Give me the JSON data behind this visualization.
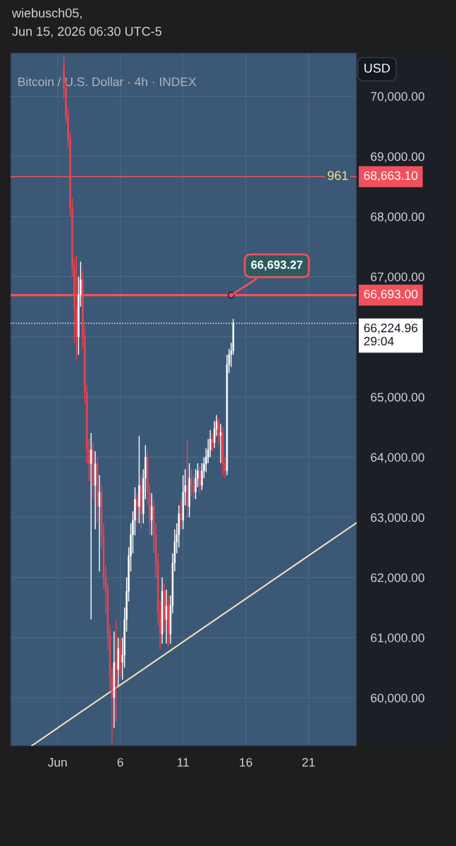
{
  "chart_data": {
    "type": "candlestick",
    "title": "Bitcoin / U.S. Dollar · 4h · INDEX",
    "ylabel": "USD",
    "annotations": [
      "wiebusch05,",
      "Jun 15, 2026 06:30 UTC-5",
      {
        "text": "961",
        "x": "2026-06-23T08:00",
        "y": 68663.1
      },
      {
        "text": "66,693.27",
        "x": "2026-06-14T20:00",
        "y": 66693.27
      }
    ],
    "x": [
      "2026-06-01T12:00",
      "2026-06-01T16:00",
      "2026-06-01T20:00",
      "2026-06-02T00:00",
      "2026-06-02T04:00",
      "2026-06-02T08:00",
      "2026-06-02T12:00",
      "2026-06-02T16:00",
      "2026-06-02T20:00",
      "2026-06-03T00:00",
      "2026-06-03T04:00",
      "2026-06-03T08:00",
      "2026-06-03T12:00",
      "2026-06-03T16:00",
      "2026-06-03T20:00",
      "2026-06-04T00:00",
      "2026-06-04T04:00",
      "2026-06-04T08:00",
      "2026-06-04T12:00",
      "2026-06-04T16:00",
      "2026-06-04T20:00",
      "2026-06-05T00:00",
      "2026-06-05T04:00",
      "2026-06-05T08:00",
      "2026-06-05T12:00",
      "2026-06-05T16:00",
      "2026-06-05T20:00",
      "2026-06-06T00:00",
      "2026-06-06T04:00",
      "2026-06-06T08:00",
      "2026-06-06T12:00",
      "2026-06-06T16:00",
      "2026-06-06T20:00",
      "2026-06-07T00:00",
      "2026-06-07T04:00",
      "2026-06-07T08:00",
      "2026-06-07T12:00",
      "2026-06-07T16:00",
      "2026-06-07T20:00",
      "2026-06-08T00:00",
      "2026-06-08T04:00",
      "2026-06-08T08:00",
      "2026-06-08T12:00",
      "2026-06-08T16:00",
      "2026-06-08T20:00",
      "2026-06-09T00:00",
      "2026-06-09T04:00",
      "2026-06-09T08:00",
      "2026-06-09T12:00",
      "2026-06-09T16:00",
      "2026-06-09T20:00",
      "2026-06-10T00:00",
      "2026-06-10T04:00",
      "2026-06-10T08:00",
      "2026-06-10T12:00",
      "2026-06-10T16:00",
      "2026-06-10T20:00",
      "2026-06-11T00:00",
      "2026-06-11T04:00",
      "2026-06-11T08:00",
      "2026-06-11T12:00",
      "2026-06-11T16:00",
      "2026-06-11T20:00",
      "2026-06-12T00:00",
      "2026-06-12T04:00",
      "2026-06-12T08:00",
      "2026-06-12T12:00",
      "2026-06-12T16:00",
      "2026-06-12T20:00",
      "2026-06-13T00:00",
      "2026-06-13T04:00",
      "2026-06-13T08:00",
      "2026-06-13T12:00",
      "2026-06-13T16:00",
      "2026-06-13T20:00",
      "2026-06-14T00:00",
      "2026-06-14T04:00",
      "2026-06-14T08:00",
      "2026-06-14T12:00",
      "2026-06-14T16:00",
      "2026-06-14T20:00",
      "2026-06-15T00:00"
    ],
    "ohlc": [
      [
        70500,
        70650,
        69950,
        70130
      ],
      [
        70130,
        70250,
        69550,
        69660
      ],
      [
        69660,
        69800,
        69150,
        69300
      ],
      [
        69300,
        69400,
        68000,
        68130
      ],
      [
        68130,
        68300,
        67000,
        67180
      ],
      [
        67180,
        67300,
        65900,
        66480
      ],
      [
        66480,
        67350,
        65600,
        66000
      ],
      [
        66000,
        67000,
        65700,
        66700
      ],
      [
        66700,
        67250,
        66500,
        66950
      ],
      [
        66950,
        67100,
        65800,
        66000
      ],
      [
        66000,
        66200,
        64900,
        65070
      ],
      [
        65070,
        65200,
        63900,
        64120
      ],
      [
        64120,
        64300,
        63600,
        63890
      ],
      [
        63890,
        64400,
        61300,
        64120
      ],
      [
        64120,
        64250,
        63300,
        63530
      ],
      [
        63530,
        64100,
        62800,
        63890
      ],
      [
        63890,
        64000,
        62900,
        63180
      ],
      [
        63180,
        63700,
        62100,
        63420
      ],
      [
        63420,
        63550,
        62500,
        62710
      ],
      [
        62710,
        62900,
        61800,
        62000
      ],
      [
        62000,
        62200,
        61400,
        61770
      ],
      [
        61770,
        61900,
        60800,
        61060
      ],
      [
        61060,
        61200,
        60100,
        60350
      ],
      [
        60350,
        60500,
        59250,
        60000
      ],
      [
        60000,
        61100,
        59500,
        60590
      ],
      [
        60590,
        61300,
        59600,
        60470
      ],
      [
        60470,
        61000,
        60200,
        60820
      ],
      [
        60820,
        61000,
        60350,
        60590
      ],
      [
        60590,
        61000,
        60300,
        60710
      ],
      [
        60710,
        61500,
        60500,
        61300
      ],
      [
        61300,
        62000,
        61100,
        61770
      ],
      [
        61770,
        62500,
        61600,
        62360
      ],
      [
        62360,
        62900,
        62100,
        62710
      ],
      [
        62710,
        63100,
        62400,
        62950
      ],
      [
        62950,
        63500,
        62700,
        63300
      ],
      [
        63300,
        63400,
        62900,
        63180
      ],
      [
        63180,
        64350,
        62900,
        63530
      ],
      [
        63530,
        63700,
        62800,
        63060
      ],
      [
        63060,
        63800,
        62900,
        63650
      ],
      [
        63650,
        64200,
        63300,
        64000
      ],
      [
        64000,
        64100,
        63200,
        63420
      ],
      [
        63420,
        63550,
        62700,
        62950
      ],
      [
        62950,
        63400,
        62700,
        63180
      ],
      [
        63180,
        63300,
        62400,
        62710
      ],
      [
        62710,
        62900,
        62000,
        62240
      ],
      [
        62240,
        62400,
        61200,
        61410
      ],
      [
        61410,
        61600,
        60800,
        61060
      ],
      [
        61060,
        62000,
        60900,
        61770
      ],
      [
        61770,
        61900,
        61100,
        61300
      ],
      [
        61300,
        61800,
        60900,
        61530
      ],
      [
        61530,
        61700,
        60850,
        61060
      ],
      [
        61060,
        61700,
        60900,
        61530
      ],
      [
        61530,
        62400,
        61400,
        62240
      ],
      [
        62240,
        62800,
        62100,
        62590
      ],
      [
        62590,
        62900,
        62400,
        62710
      ],
      [
        62710,
        63200,
        62500,
        63060
      ],
      [
        63060,
        63300,
        62800,
        62950
      ],
      [
        62950,
        63700,
        62800,
        63420
      ],
      [
        63420,
        63800,
        63200,
        63530
      ],
      [
        63530,
        64300,
        63000,
        63180
      ],
      [
        63180,
        63900,
        63000,
        63650
      ],
      [
        63650,
        63800,
        63350,
        63530
      ],
      [
        63530,
        63700,
        63300,
        63420
      ],
      [
        63420,
        63800,
        63300,
        63650
      ],
      [
        63650,
        63900,
        63500,
        63770
      ],
      [
        63770,
        63850,
        63400,
        63530
      ],
      [
        63530,
        63900,
        63450,
        63770
      ],
      [
        63770,
        64000,
        63650,
        63890
      ],
      [
        63890,
        64150,
        63750,
        64000
      ],
      [
        64000,
        64300,
        63900,
        64120
      ],
      [
        64120,
        64450,
        64000,
        64300
      ],
      [
        64300,
        64400,
        64100,
        64240
      ],
      [
        64240,
        64600,
        64150,
        64470
      ],
      [
        64470,
        64700,
        64350,
        64590
      ],
      [
        64590,
        64650,
        64200,
        64360
      ],
      [
        64360,
        64550,
        63900,
        64410
      ],
      [
        64410,
        64500,
        63700,
        63890
      ],
      [
        63890,
        64000,
        63650,
        63770
      ],
      [
        63770,
        65700,
        63700,
        65540
      ],
      [
        65540,
        65800,
        65400,
        65710
      ],
      [
        65710,
        65900,
        65500,
        65770
      ],
      [
        65770,
        66300,
        65700,
        66224.96
      ]
    ],
    "colors": [
      "#f0424f",
      "#f0424f",
      "#f0424f",
      "#f0424f",
      "#f0424f",
      "#f0424f",
      "#f0424f",
      "#ffffff",
      "#ffffff",
      "#f0424f",
      "#f0424f",
      "#f0424f",
      "#f0424f",
      "#ffffff",
      "#f0424f",
      "#ffffff",
      "#f0424f",
      "#ffffff",
      "#f0424f",
      "#f0424f",
      "#f0424f",
      "#f0424f",
      "#f0424f",
      "#f0424f",
      "#ffffff",
      "#f0424f",
      "#ffffff",
      "#f0424f",
      "#ffffff",
      "#ffffff",
      "#ffffff",
      "#ffffff",
      "#ffffff",
      "#ffffff",
      "#ffffff",
      "#f0424f",
      "#ffffff",
      "#f0424f",
      "#ffffff",
      "#ffffff",
      "#f0424f",
      "#f0424f",
      "#ffffff",
      "#f0424f",
      "#f0424f",
      "#f0424f",
      "#f0424f",
      "#ffffff",
      "#f0424f",
      "#ffffff",
      "#f0424f",
      "#ffffff",
      "#ffffff",
      "#ffffff",
      "#ffffff",
      "#ffffff",
      "#f0424f",
      "#ffffff",
      "#ffffff",
      "#f0424f",
      "#ffffff",
      "#f0424f",
      "#f0424f",
      "#ffffff",
      "#ffffff",
      "#f0424f",
      "#ffffff",
      "#ffffff",
      "#ffffff",
      "#ffffff",
      "#ffffff",
      "#f0424f",
      "#ffffff",
      "#ffffff",
      "#f0424f",
      "#ffffff",
      "#f0424f",
      "#f0424f",
      "#ffffff",
      "#ffffff",
      "#ffffff",
      "#ffffff"
    ],
    "series": [
      {
        "type": "line",
        "color": "#f3e3b5",
        "x": [
          "2026-05-29T22:00",
          "2026-06-24T20:00"
        ],
        "values": [
          59200,
          62910
        ]
      }
    ],
    "ref_lines": [
      {
        "axis": "y",
        "value": 68663.1,
        "label": "68,663.10",
        "color": "#f0515c",
        "line_style": "solid"
      },
      {
        "axis": "y",
        "value": 66693,
        "label": "66,693.00",
        "color": "#f0515c",
        "line_style": "solid"
      },
      {
        "axis": "y",
        "value": 66224.96,
        "label": "66,224.96\n29:04",
        "color": "#ffffff",
        "line_style": "dotted"
      }
    ],
    "xlim": [
      "2026-05-28T06:00",
      "2026-06-24T20:00"
    ],
    "xticks": [
      {
        "value": "2026-06-01",
        "label": "Jun"
      },
      {
        "value": "2026-06-06",
        "label": "6"
      },
      {
        "value": "2026-06-11",
        "label": "11"
      },
      {
        "value": "2026-06-16",
        "label": "16"
      },
      {
        "value": "2026-06-21",
        "label": "21"
      }
    ],
    "ylim": [
      59200,
      70720
    ],
    "yticks": [
      {
        "value": 60000,
        "label": "60,000.00"
      },
      {
        "value": 61000,
        "label": "61,000.00"
      },
      {
        "value": 62000,
        "label": "62,000.00"
      },
      {
        "value": 63000,
        "label": "63,000.00"
      },
      {
        "value": 64000,
        "label": "64,000.00"
      },
      {
        "value": 65000,
        "label": "65,000.00"
      },
      {
        "value": 66000,
        "label": null
      },
      {
        "value": 67000,
        "label": "67,000.00"
      },
      {
        "value": 68000,
        "label": "68,000.00"
      },
      {
        "value": 69000,
        "label": "69,000.00"
      },
      {
        "value": 70000,
        "label": "70,000.00"
      }
    ],
    "grid": true
  }
}
